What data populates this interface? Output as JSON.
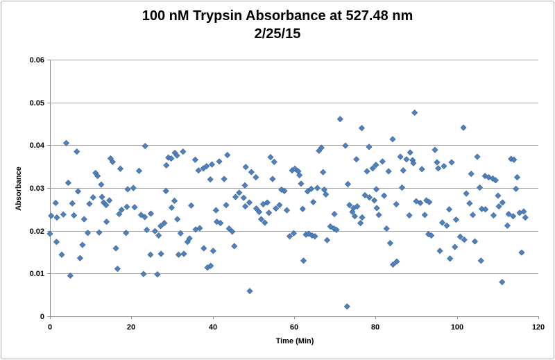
{
  "chart": {
    "title": "100 nM Trypsin Absorbance at 527.48 nm",
    "subtitle": "2/25/15"
  },
  "chart_data": {
    "type": "scatter",
    "title": "100 nM Trypsin Absorbance at 527.48 nm",
    "subtitle": "2/25/15",
    "xlabel": "Time (Min)",
    "ylabel": "Absorbance",
    "xlim": [
      0,
      120
    ],
    "ylim": [
      0,
      0.06
    ],
    "xticks": [
      0,
      20,
      40,
      60,
      80,
      100,
      120
    ],
    "xtick_labels": [
      "0",
      "20",
      "40",
      "60",
      "80",
      "100",
      "120"
    ],
    "yticks": [
      0,
      0.01,
      0.02,
      0.03,
      0.04,
      0.05,
      0.06
    ],
    "ytick_labels": [
      "0",
      "0.01",
      "0.02",
      "0.03",
      "0.04",
      "0.05",
      "0.06"
    ],
    "grid": "horizontal-only",
    "legend": "none",
    "marker": {
      "shape": "diamond",
      "fill": "#4F81BD",
      "stroke": "#3F6A9D",
      "size": 8
    },
    "colors": {
      "gridline": "#A6A6A6",
      "axis": "#8C8C8C",
      "text": "#000000",
      "frame": "#ABABAB"
    },
    "series_name": "Absorbance",
    "points": [
      [
        0,
        0.0193
      ],
      [
        0.3,
        0.0235
      ],
      [
        1.4,
        0.0265
      ],
      [
        1.6,
        0.0174
      ],
      [
        1.7,
        0.0231
      ],
      [
        2.9,
        0.0144
      ],
      [
        3.3,
        0.0238
      ],
      [
        4,
        0.0405
      ],
      [
        4.5,
        0.0312
      ],
      [
        5,
        0.0095
      ],
      [
        5.5,
        0.0264
      ],
      [
        5.9,
        0.0236
      ],
      [
        6.6,
        0.0385
      ],
      [
        6.9,
        0.0292
      ],
      [
        7.4,
        0.0136
      ],
      [
        8,
        0.0167
      ],
      [
        8.4,
        0.0227
      ],
      [
        9.3,
        0.0195
      ],
      [
        9.7,
        0.0263
      ],
      [
        10.6,
        0.0278
      ],
      [
        11.2,
        0.0335
      ],
      [
        11.7,
        0.0328
      ],
      [
        12.1,
        0.0196
      ],
      [
        12.6,
        0.0308
      ],
      [
        12.8,
        0.0279
      ],
      [
        13.2,
        0.0266
      ],
      [
        13.8,
        0.026
      ],
      [
        13.9,
        0.0221
      ],
      [
        14.6,
        0.0271
      ],
      [
        14.9,
        0.0369
      ],
      [
        15.4,
        0.0361
      ],
      [
        16.2,
        0.0159
      ],
      [
        16.6,
        0.0111
      ],
      [
        17,
        0.0239
      ],
      [
        17.3,
        0.0345
      ],
      [
        17.6,
        0.0249
      ],
      [
        18.7,
        0.0195
      ],
      [
        18.9,
        0.0256
      ],
      [
        19.1,
        0.0297
      ],
      [
        20.5,
        0.03
      ],
      [
        20.8,
        0.0255
      ],
      [
        21.9,
        0.034
      ],
      [
        22.4,
        0.0237
      ],
      [
        23,
        0.0099
      ],
      [
        23.3,
        0.0232
      ],
      [
        23.4,
        0.0398
      ],
      [
        23.8,
        0.0202
      ],
      [
        24.7,
        0.0144
      ],
      [
        24.8,
        0.024
      ],
      [
        25.8,
        0.0199
      ],
      [
        26.4,
        0.0098
      ],
      [
        26.7,
        0.0189
      ],
      [
        27.2,
        0.0211
      ],
      [
        27.3,
        0.0146
      ],
      [
        28.1,
        0.0218
      ],
      [
        28.5,
        0.0293
      ],
      [
        28.6,
        0.0353
      ],
      [
        29.1,
        0.0371
      ],
      [
        29.8,
        0.0369
      ],
      [
        29.9,
        0.0254
      ],
      [
        30.6,
        0.027
      ],
      [
        30.7,
        0.0382
      ],
      [
        31.2,
        0.0376
      ],
      [
        31.3,
        0.0227
      ],
      [
        31.6,
        0.0144
      ],
      [
        32.1,
        0.0194
      ],
      [
        32.7,
        0.0385
      ],
      [
        32.9,
        0.0146
      ],
      [
        33.8,
        0.0174
      ],
      [
        34.3,
        0.0182
      ],
      [
        34.7,
        0.0259
      ],
      [
        35.7,
        0.0366
      ],
      [
        35.8,
        0.0203
      ],
      [
        36.5,
        0.0341
      ],
      [
        36.8,
        0.0206
      ],
      [
        37.7,
        0.0346
      ],
      [
        37.8,
        0.0159
      ],
      [
        38.5,
        0.0351
      ],
      [
        38.7,
        0.0114
      ],
      [
        39.4,
        0.032
      ],
      [
        39.5,
        0.0118
      ],
      [
        39.8,
        0.0355
      ],
      [
        40.1,
        0.0153
      ],
      [
        40.8,
        0.0248
      ],
      [
        41,
        0.0221
      ],
      [
        41.6,
        0.0362
      ],
      [
        41.9,
        0.0218
      ],
      [
        42.8,
        0.0321
      ],
      [
        43.3,
        0.026
      ],
      [
        43.6,
        0.0377
      ],
      [
        44,
        0.0205
      ],
      [
        44.8,
        0.0198
      ],
      [
        45.3,
        0.0164
      ],
      [
        45.6,
        0.0279
      ],
      [
        46.5,
        0.0289
      ],
      [
        47.6,
        0.0277
      ],
      [
        47.9,
        0.0306
      ],
      [
        48,
        0.0257
      ],
      [
        48.1,
        0.0349
      ],
      [
        49,
        0.0266
      ],
      [
        49.1,
        0.0059
      ],
      [
        49.5,
        0.0337
      ],
      [
        50.6,
        0.0325
      ],
      [
        50.7,
        0.0252
      ],
      [
        51.4,
        0.0244
      ],
      [
        51.9,
        0.0227
      ],
      [
        52.4,
        0.0262
      ],
      [
        52.8,
        0.0219
      ],
      [
        53.4,
        0.0266
      ],
      [
        53.8,
        0.0242
      ],
      [
        54.2,
        0.0372
      ],
      [
        54.7,
        0.0321
      ],
      [
        55.1,
        0.0361
      ],
      [
        55.5,
        0.0252
      ],
      [
        56.4,
        0.026
      ],
      [
        56.9,
        0.0296
      ],
      [
        57.6,
        0.0293
      ],
      [
        58.2,
        0.0248
      ],
      [
        58.9,
        0.0187
      ],
      [
        59.5,
        0.0341
      ],
      [
        59.9,
        0.0194
      ],
      [
        60.2,
        0.0345
      ],
      [
        61,
        0.0339
      ],
      [
        61.3,
        0.033
      ],
      [
        61.7,
        0.031
      ],
      [
        62.1,
        0.0251
      ],
      [
        62.3,
        0.013
      ],
      [
        62.9,
        0.0191
      ],
      [
        63.3,
        0.0292
      ],
      [
        63.6,
        0.0193
      ],
      [
        64.2,
        0.0298
      ],
      [
        64.4,
        0.0189
      ],
      [
        64.7,
        0.0267
      ],
      [
        65.1,
        0.0187
      ],
      [
        65.7,
        0.03
      ],
      [
        66.1,
        0.0387
      ],
      [
        66.7,
        0.0394
      ],
      [
        67.1,
        0.0337
      ],
      [
        67.4,
        0.0296
      ],
      [
        67.8,
        0.0285
      ],
      [
        68.1,
        0.0178
      ],
      [
        68.9,
        0.021
      ],
      [
        69.8,
        0.0205
      ],
      [
        69.9,
        0.0239
      ],
      [
        70.4,
        0.0202
      ],
      [
        71.3,
        0.0461
      ],
      [
        72.6,
        0.0399
      ],
      [
        73,
        0.0023
      ],
      [
        73.2,
        0.0309
      ],
      [
        73.6,
        0.026
      ],
      [
        74.3,
        0.0244
      ],
      [
        74.6,
        0.0253
      ],
      [
        74.9,
        0.0234
      ],
      [
        75.3,
        0.0367
      ],
      [
        75.5,
        0.0257
      ],
      [
        76.3,
        0.0218
      ],
      [
        76.6,
        0.044
      ],
      [
        76.7,
        0.0231
      ],
      [
        77.4,
        0.0283
      ],
      [
        77.9,
        0.0339
      ],
      [
        78.4,
        0.0396
      ],
      [
        78.5,
        0.0278
      ],
      [
        79.3,
        0.0346
      ],
      [
        79.7,
        0.0271
      ],
      [
        80.1,
        0.0354
      ],
      [
        80.2,
        0.0297
      ],
      [
        80.3,
        0.0253
      ],
      [
        80.8,
        0.0237
      ],
      [
        81.7,
        0.0362
      ],
      [
        82.1,
        0.0282
      ],
      [
        82.7,
        0.0205
      ],
      [
        83.2,
        0.0339
      ],
      [
        83.6,
        0.0171
      ],
      [
        84.2,
        0.0414
      ],
      [
        84.3,
        0.0121
      ],
      [
        85.1,
        0.0262
      ],
      [
        85.2,
        0.0128
      ],
      [
        86.1,
        0.0373
      ],
      [
        86.5,
        0.0301
      ],
      [
        86.8,
        0.0341
      ],
      [
        87.6,
        0.0367
      ],
      [
        88.3,
        0.0236
      ],
      [
        88.5,
        0.0383
      ],
      [
        89.1,
        0.0365
      ],
      [
        89.3,
        0.0358
      ],
      [
        89.6,
        0.0476
      ],
      [
        90,
        0.0269
      ],
      [
        91,
        0.0265
      ],
      [
        91.4,
        0.0344
      ],
      [
        92.1,
        0.0237
      ],
      [
        92.5,
        0.0271
      ],
      [
        93,
        0.0192
      ],
      [
        93.2,
        0.0267
      ],
      [
        93.7,
        0.0189
      ],
      [
        94.6,
        0.0389
      ],
      [
        95.1,
        0.036
      ],
      [
        95.4,
        0.0346
      ],
      [
        95.8,
        0.0153
      ],
      [
        96.4,
        0.0219
      ],
      [
        96.8,
        0.0351
      ],
      [
        97.5,
        0.0212
      ],
      [
        98.1,
        0.025
      ],
      [
        98.3,
        0.0135
      ],
      [
        98.7,
        0.036
      ],
      [
        99.5,
        0.0162
      ],
      [
        99.8,
        0.0226
      ],
      [
        100.8,
        0.0186
      ],
      [
        101.6,
        0.0441
      ],
      [
        101.8,
        0.0179
      ],
      [
        102.3,
        0.0287
      ],
      [
        103.1,
        0.0264
      ],
      [
        103.5,
        0.0333
      ],
      [
        103.9,
        0.0237
      ],
      [
        104.4,
        0.0175
      ],
      [
        105,
        0.0373
      ],
      [
        105.6,
        0.0301
      ],
      [
        105.9,
        0.013
      ],
      [
        106.1,
        0.0251
      ],
      [
        106.9,
        0.0328
      ],
      [
        107,
        0.025
      ],
      [
        107.8,
        0.0325
      ],
      [
        108.8,
        0.0322
      ],
      [
        109,
        0.0236
      ],
      [
        109.5,
        0.0318
      ],
      [
        110.1,
        0.0282
      ],
      [
        110.3,
        0.0257
      ],
      [
        111.1,
        0.008
      ],
      [
        111.2,
        0.0266
      ],
      [
        112.4,
        0.0212
      ],
      [
        112.7,
        0.0239
      ],
      [
        113.3,
        0.0368
      ],
      [
        113.8,
        0.0234
      ],
      [
        114,
        0.0366
      ],
      [
        114.5,
        0.0298
      ],
      [
        114.8,
        0.0325
      ],
      [
        115.4,
        0.0242
      ],
      [
        115.9,
        0.0149
      ],
      [
        116.4,
        0.0245
      ],
      [
        116.8,
        0.0231
      ]
    ]
  }
}
